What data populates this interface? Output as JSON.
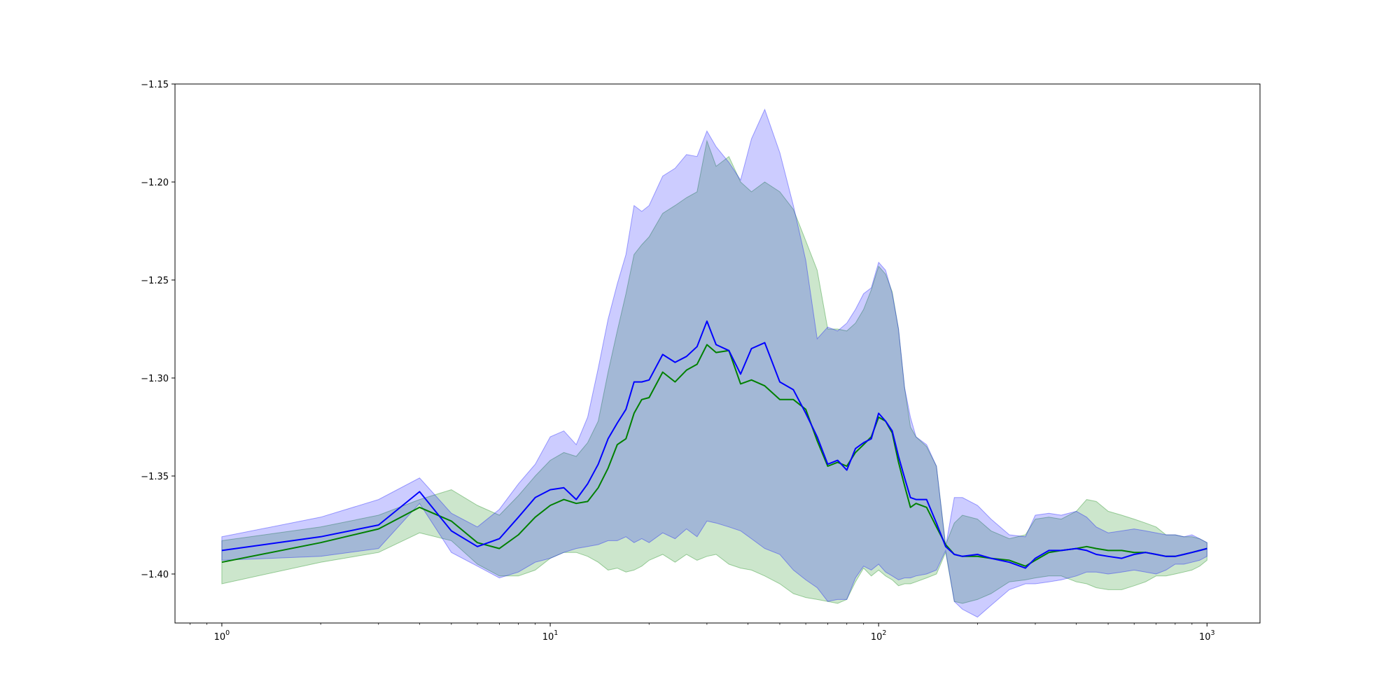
{
  "chart_data": {
    "type": "line",
    "title": "",
    "xlabel": "",
    "ylabel": "",
    "x_scale": "log",
    "xlim": [
      0.72,
      1450
    ],
    "ylim": [
      -1.425,
      -1.15
    ],
    "grid": false,
    "legend": "none",
    "x_ticks": [
      {
        "value": 1,
        "base": "10",
        "exp": "0"
      },
      {
        "value": 10,
        "base": "10",
        "exp": "1"
      },
      {
        "value": 100,
        "base": "10",
        "exp": "2"
      },
      {
        "value": 1000,
        "base": "10",
        "exp": "3"
      }
    ],
    "y_ticks": [
      {
        "value": -1.15,
        "label": "−1.15"
      },
      {
        "value": -1.2,
        "label": "−1.20"
      },
      {
        "value": -1.25,
        "label": "−1.25"
      },
      {
        "value": -1.3,
        "label": "−1.30"
      },
      {
        "value": -1.35,
        "label": "−1.35"
      },
      {
        "value": -1.4,
        "label": "−1.40"
      }
    ],
    "series": [
      {
        "color": "#008000",
        "band_color": "#008000",
        "band_opacity": 0.2,
        "x": [
          1,
          2,
          3,
          4,
          5,
          6,
          7,
          8,
          9,
          10,
          11,
          12,
          13,
          14,
          15,
          16,
          17,
          18,
          19,
          20,
          22,
          24,
          26,
          28,
          30,
          32,
          35,
          38,
          41,
          45,
          50,
          55,
          60,
          65,
          70,
          75,
          80,
          85,
          90,
          95,
          100,
          105,
          110,
          115,
          120,
          125,
          130,
          140,
          150,
          160,
          170,
          180,
          200,
          220,
          250,
          280,
          300,
          330,
          360,
          400,
          430,
          460,
          500,
          550,
          600,
          650,
          700,
          750,
          800,
          850,
          900,
          950,
          1000
        ],
        "y": [
          -1.394,
          -1.384,
          -1.377,
          -1.366,
          -1.373,
          -1.384,
          -1.387,
          -1.38,
          -1.371,
          -1.365,
          -1.362,
          -1.364,
          -1.363,
          -1.356,
          -1.346,
          -1.334,
          -1.331,
          -1.318,
          -1.311,
          -1.31,
          -1.297,
          -1.302,
          -1.296,
          -1.293,
          -1.283,
          -1.287,
          -1.286,
          -1.303,
          -1.301,
          -1.304,
          -1.311,
          -1.311,
          -1.316,
          -1.332,
          -1.345,
          -1.343,
          -1.345,
          -1.338,
          -1.334,
          -1.33,
          -1.32,
          -1.322,
          -1.328,
          -1.343,
          -1.355,
          -1.366,
          -1.364,
          -1.366,
          -1.376,
          -1.385,
          -1.39,
          -1.391,
          -1.391,
          -1.392,
          -1.393,
          -1.396,
          -1.393,
          -1.389,
          -1.388,
          -1.387,
          -1.386,
          -1.387,
          -1.388,
          -1.388,
          -1.389,
          -1.389,
          -1.39,
          -1.391,
          -1.391,
          -1.39,
          -1.389,
          -1.388,
          -1.387
        ],
        "upper": [
          -1.383,
          -1.376,
          -1.37,
          -1.362,
          -1.357,
          -1.365,
          -1.37,
          -1.36,
          -1.35,
          -1.342,
          -1.338,
          -1.34,
          -1.333,
          -1.322,
          -1.297,
          -1.276,
          -1.257,
          -1.237,
          -1.232,
          -1.228,
          -1.216,
          -1.212,
          -1.208,
          -1.205,
          -1.179,
          -1.192,
          -1.187,
          -1.2,
          -1.205,
          -1.2,
          -1.205,
          -1.214,
          -1.23,
          -1.245,
          -1.275,
          -1.275,
          -1.276,
          -1.272,
          -1.265,
          -1.255,
          -1.243,
          -1.247,
          -1.256,
          -1.275,
          -1.305,
          -1.325,
          -1.33,
          -1.335,
          -1.345,
          -1.385,
          -1.374,
          -1.37,
          -1.372,
          -1.378,
          -1.382,
          -1.38,
          -1.372,
          -1.371,
          -1.372,
          -1.368,
          -1.362,
          -1.363,
          -1.368,
          -1.37,
          -1.372,
          -1.374,
          -1.376,
          -1.38,
          -1.38,
          -1.381,
          -1.381,
          -1.382,
          -1.384
        ],
        "lower": [
          -1.405,
          -1.394,
          -1.389,
          -1.379,
          -1.383,
          -1.395,
          -1.401,
          -1.401,
          -1.398,
          -1.392,
          -1.389,
          -1.389,
          -1.391,
          -1.394,
          -1.398,
          -1.397,
          -1.399,
          -1.398,
          -1.396,
          -1.393,
          -1.39,
          -1.394,
          -1.39,
          -1.393,
          -1.391,
          -1.39,
          -1.395,
          -1.397,
          -1.398,
          -1.401,
          -1.405,
          -1.41,
          -1.412,
          -1.413,
          -1.414,
          -1.415,
          -1.413,
          -1.404,
          -1.397,
          -1.401,
          -1.398,
          -1.401,
          -1.403,
          -1.406,
          -1.405,
          -1.405,
          -1.404,
          -1.402,
          -1.4,
          -1.389,
          -1.414,
          -1.415,
          -1.413,
          -1.41,
          -1.404,
          -1.403,
          -1.402,
          -1.401,
          -1.401,
          -1.404,
          -1.405,
          -1.407,
          -1.408,
          -1.408,
          -1.406,
          -1.404,
          -1.401,
          -1.401,
          -1.4,
          -1.399,
          -1.398,
          -1.396,
          -1.393
        ]
      },
      {
        "color": "#0000ff",
        "band_color": "#0000ff",
        "band_opacity": 0.2,
        "x": [
          1,
          2,
          3,
          4,
          5,
          6,
          7,
          8,
          9,
          10,
          11,
          12,
          13,
          14,
          15,
          16,
          17,
          18,
          19,
          20,
          22,
          24,
          26,
          28,
          30,
          32,
          35,
          38,
          41,
          45,
          50,
          55,
          60,
          65,
          70,
          75,
          80,
          85,
          90,
          95,
          100,
          105,
          110,
          115,
          120,
          125,
          130,
          140,
          150,
          160,
          170,
          180,
          200,
          220,
          250,
          280,
          300,
          330,
          360,
          400,
          430,
          460,
          500,
          550,
          600,
          650,
          700,
          750,
          800,
          850,
          900,
          950,
          1000
        ],
        "y": [
          -1.388,
          -1.381,
          -1.375,
          -1.358,
          -1.378,
          -1.386,
          -1.382,
          -1.371,
          -1.361,
          -1.357,
          -1.356,
          -1.362,
          -1.354,
          -1.344,
          -1.331,
          -1.323,
          -1.316,
          -1.302,
          -1.302,
          -1.301,
          -1.288,
          -1.292,
          -1.289,
          -1.284,
          -1.271,
          -1.283,
          -1.286,
          -1.298,
          -1.285,
          -1.282,
          -1.302,
          -1.306,
          -1.318,
          -1.33,
          -1.344,
          -1.342,
          -1.347,
          -1.336,
          -1.333,
          -1.331,
          -1.318,
          -1.322,
          -1.327,
          -1.34,
          -1.351,
          -1.361,
          -1.362,
          -1.362,
          -1.374,
          -1.386,
          -1.39,
          -1.391,
          -1.39,
          -1.392,
          -1.394,
          -1.397,
          -1.392,
          -1.388,
          -1.388,
          -1.387,
          -1.388,
          -1.39,
          -1.391,
          -1.392,
          -1.39,
          -1.389,
          -1.39,
          -1.391,
          -1.391,
          -1.39,
          -1.389,
          -1.388,
          -1.387
        ],
        "upper": [
          -1.381,
          -1.371,
          -1.362,
          -1.351,
          -1.369,
          -1.376,
          -1.367,
          -1.354,
          -1.344,
          -1.33,
          -1.327,
          -1.334,
          -1.32,
          -1.295,
          -1.27,
          -1.252,
          -1.237,
          -1.212,
          -1.215,
          -1.212,
          -1.197,
          -1.193,
          -1.186,
          -1.187,
          -1.174,
          -1.182,
          -1.19,
          -1.199,
          -1.178,
          -1.163,
          -1.185,
          -1.212,
          -1.24,
          -1.28,
          -1.274,
          -1.276,
          -1.272,
          -1.265,
          -1.257,
          -1.254,
          -1.241,
          -1.245,
          -1.257,
          -1.275,
          -1.305,
          -1.32,
          -1.33,
          -1.334,
          -1.345,
          -1.386,
          -1.361,
          -1.361,
          -1.365,
          -1.372,
          -1.38,
          -1.381,
          -1.37,
          -1.369,
          -1.37,
          -1.368,
          -1.371,
          -1.376,
          -1.379,
          -1.378,
          -1.377,
          -1.378,
          -1.379,
          -1.38,
          -1.38,
          -1.381,
          -1.38,
          -1.382,
          -1.384
        ],
        "lower": [
          -1.393,
          -1.391,
          -1.387,
          -1.364,
          -1.389,
          -1.396,
          -1.402,
          -1.399,
          -1.394,
          -1.392,
          -1.389,
          -1.387,
          -1.386,
          -1.385,
          -1.383,
          -1.383,
          -1.381,
          -1.384,
          -1.382,
          -1.384,
          -1.379,
          -1.382,
          -1.377,
          -1.381,
          -1.373,
          -1.374,
          -1.376,
          -1.378,
          -1.382,
          -1.387,
          -1.39,
          -1.398,
          -1.403,
          -1.407,
          -1.414,
          -1.413,
          -1.413,
          -1.402,
          -1.396,
          -1.398,
          -1.395,
          -1.399,
          -1.401,
          -1.403,
          -1.402,
          -1.402,
          -1.401,
          -1.4,
          -1.398,
          -1.388,
          -1.414,
          -1.418,
          -1.422,
          -1.416,
          -1.408,
          -1.405,
          -1.405,
          -1.404,
          -1.403,
          -1.401,
          -1.399,
          -1.399,
          -1.4,
          -1.399,
          -1.398,
          -1.399,
          -1.4,
          -1.398,
          -1.395,
          -1.395,
          -1.394,
          -1.393,
          -1.391
        ]
      }
    ]
  }
}
